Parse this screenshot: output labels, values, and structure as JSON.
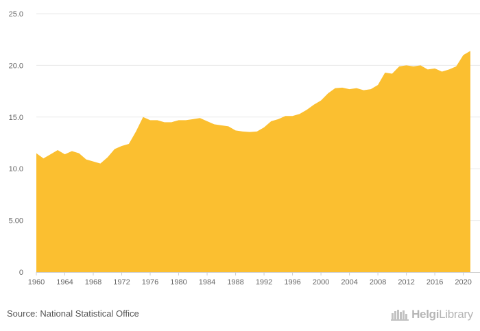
{
  "chart_data": {
    "type": "area",
    "title": "",
    "xlabel": "",
    "ylabel": "",
    "ylim": [
      0,
      25
    ],
    "y_ticks": [
      "0",
      "5.00",
      "10.0",
      "15.0",
      "20.0",
      "25.0"
    ],
    "y_tick_values": [
      0,
      5,
      10,
      15,
      20,
      25
    ],
    "x_ticks": [
      "1960",
      "1964",
      "1968",
      "1972",
      "1976",
      "1980",
      "1984",
      "1988",
      "1992",
      "1996",
      "2000",
      "2004",
      "2008",
      "2012",
      "2016",
      "2020"
    ],
    "x_tick_values": [
      1960,
      1964,
      1968,
      1972,
      1976,
      1980,
      1984,
      1988,
      1992,
      1996,
      2000,
      2004,
      2008,
      2012,
      2016,
      2020
    ],
    "grid": "horizontal",
    "x": [
      1960,
      1961,
      1962,
      1963,
      1964,
      1965,
      1966,
      1967,
      1968,
      1969,
      1970,
      1971,
      1972,
      1973,
      1974,
      1975,
      1976,
      1977,
      1978,
      1979,
      1980,
      1981,
      1982,
      1983,
      1984,
      1985,
      1986,
      1987,
      1988,
      1989,
      1990,
      1991,
      1992,
      1993,
      1994,
      1995,
      1996,
      1997,
      1998,
      1999,
      2000,
      2001,
      2002,
      2003,
      2004,
      2005,
      2006,
      2007,
      2008,
      2009,
      2010,
      2011,
      2012,
      2013,
      2014,
      2015,
      2016,
      2017,
      2018,
      2019,
      2020,
      2021
    ],
    "series": [
      {
        "values": [
          11.5,
          11.0,
          11.4,
          11.8,
          11.4,
          11.7,
          11.5,
          10.9,
          10.7,
          10.5,
          11.1,
          11.9,
          12.2,
          12.4,
          13.6,
          15.0,
          14.7,
          14.7,
          14.5,
          14.5,
          14.7,
          14.7,
          14.8,
          14.9,
          14.6,
          14.3,
          14.2,
          14.1,
          13.7,
          13.6,
          13.55,
          13.6,
          14.0,
          14.6,
          14.8,
          15.1,
          15.1,
          15.3,
          15.7,
          16.2,
          16.6,
          17.3,
          17.8,
          17.85,
          17.7,
          17.8,
          17.6,
          17.7,
          18.1,
          19.3,
          19.2,
          19.9,
          20.0,
          19.9,
          20.0,
          19.6,
          19.7,
          19.4,
          19.6,
          19.9,
          21.0,
          21.4
        ]
      }
    ],
    "colors": {
      "fill": "#fbbf30",
      "grid": "#e9e9e9",
      "axis": "#cccccc",
      "tick_text": "#666666"
    }
  },
  "footer": {
    "source": "Source: National Statistical Office",
    "logo_part1": "Helgi",
    "logo_part2": "Library",
    "logo_icon": "helgi-library-logo-icon"
  }
}
